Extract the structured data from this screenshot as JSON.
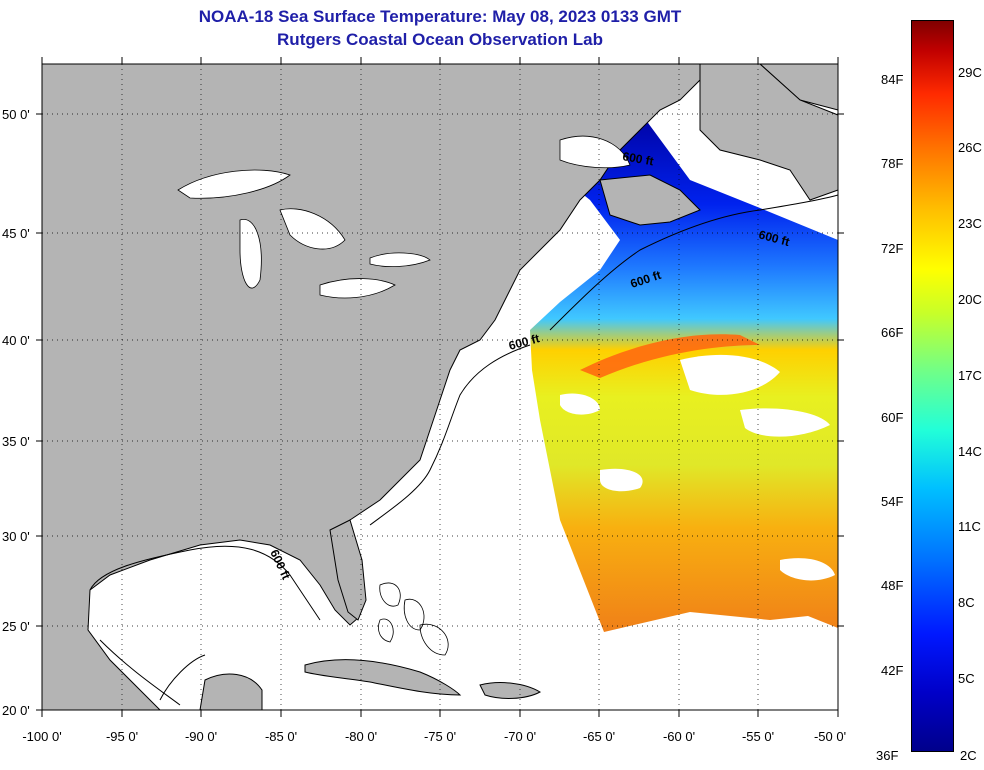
{
  "title": {
    "line1": "NOAA-18 Sea Surface Temperature:  May 08, 2023 0133 GMT",
    "line2": "Rutgers Coastal Ocean Observation Lab"
  },
  "map": {
    "lat_labels": [
      "50 0'",
      "45 0'",
      "40 0'",
      "35 0'",
      "30 0'",
      "25 0'",
      "20 0'"
    ],
    "lon_labels": [
      "-100 0'",
      "-95 0'",
      "-90 0'",
      "-85 0'",
      "-80 0'",
      "-75 0'",
      "-70 0'",
      "-65 0'",
      "-60 0'",
      "-55 0'",
      "-50 0'"
    ],
    "contour_labels": [
      "600 ft",
      "600 ft",
      "600 ft",
      "600 ft",
      "600 ft"
    ],
    "colors": {
      "land": "#b4b4b4",
      "ocean_no_data": "#ffffff",
      "title": "#1f1fa8"
    }
  },
  "colorbar": {
    "fahrenheit": [
      "84F",
      "78F",
      "72F",
      "66F",
      "60F",
      "54F",
      "48F",
      "42F",
      "36F"
    ],
    "celsius": [
      "29C",
      "26C",
      "23C",
      "20C",
      "17C",
      "14C",
      "11C",
      "8C",
      "5C",
      "2C"
    ]
  }
}
